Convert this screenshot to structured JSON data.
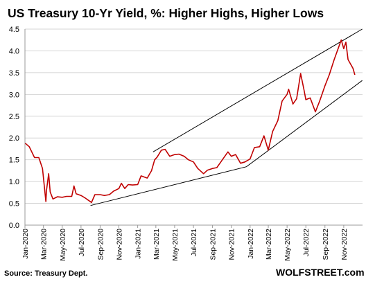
{
  "chart_data": {
    "type": "line",
    "title": "US Treasury 10-Yr Yield, %: Higher Highs, Higher Lows",
    "ylim": [
      0,
      4.5
    ],
    "yticks": [
      "0.0",
      "0.5",
      "1.0",
      "1.5",
      "2.0",
      "2.5",
      "3.0",
      "3.5",
      "4.0",
      "4.5"
    ],
    "ytick_values": [
      0,
      0.5,
      1,
      1.5,
      2,
      2.5,
      3,
      3.5,
      4,
      4.5
    ],
    "xlim": [
      "2020-01",
      "2022-12"
    ],
    "xticks": [
      "Jan-2020",
      "Mar-2020",
      "May-2020",
      "Jul-2020",
      "Sep-2020",
      "Nov-2020",
      "Jan-2021",
      "Mar-2021",
      "May-2021",
      "Jul-2021",
      "Sep-2021",
      "Nov-2021",
      "Jan-2022",
      "Mar-2022",
      "May-2022",
      "Jul-2022",
      "Sep-2022",
      "Nov-2022"
    ],
    "xtick_dates": [
      "2020-01-01",
      "2020-03-01",
      "2020-05-01",
      "2020-07-01",
      "2020-09-01",
      "2020-11-01",
      "2021-01-01",
      "2021-03-01",
      "2021-05-01",
      "2021-07-01",
      "2021-09-01",
      "2021-11-01",
      "2022-01-01",
      "2022-03-01",
      "2022-05-01",
      "2022-07-01",
      "2022-09-01",
      "2022-11-01"
    ],
    "grid": true,
    "series": [
      {
        "color": "#c00000",
        "points": [
          [
            "2020-01-02",
            1.88
          ],
          [
            "2020-01-15",
            1.8
          ],
          [
            "2020-02-01",
            1.55
          ],
          [
            "2020-02-15",
            1.55
          ],
          [
            "2020-02-27",
            1.3
          ],
          [
            "2020-03-09",
            0.54
          ],
          [
            "2020-03-11",
            0.8
          ],
          [
            "2020-03-18",
            1.18
          ],
          [
            "2020-03-23",
            0.76
          ],
          [
            "2020-04-01",
            0.6
          ],
          [
            "2020-04-15",
            0.65
          ],
          [
            "2020-05-01",
            0.64
          ],
          [
            "2020-05-15",
            0.66
          ],
          [
            "2020-06-01",
            0.66
          ],
          [
            "2020-06-08",
            0.9
          ],
          [
            "2020-06-15",
            0.72
          ],
          [
            "2020-07-01",
            0.68
          ],
          [
            "2020-07-15",
            0.62
          ],
          [
            "2020-08-04",
            0.52
          ],
          [
            "2020-08-15",
            0.7
          ],
          [
            "2020-09-01",
            0.7
          ],
          [
            "2020-09-15",
            0.68
          ],
          [
            "2020-10-01",
            0.7
          ],
          [
            "2020-10-15",
            0.78
          ],
          [
            "2020-11-01",
            0.84
          ],
          [
            "2020-11-09",
            0.96
          ],
          [
            "2020-11-20",
            0.84
          ],
          [
            "2020-12-01",
            0.93
          ],
          [
            "2020-12-15",
            0.92
          ],
          [
            "2021-01-01",
            0.93
          ],
          [
            "2021-01-12",
            1.13
          ],
          [
            "2021-02-01",
            1.08
          ],
          [
            "2021-02-15",
            1.25
          ],
          [
            "2021-02-25",
            1.5
          ],
          [
            "2021-03-05",
            1.56
          ],
          [
            "2021-03-19",
            1.72
          ],
          [
            "2021-03-31",
            1.74
          ],
          [
            "2021-04-15",
            1.58
          ],
          [
            "2021-05-01",
            1.62
          ],
          [
            "2021-05-15",
            1.63
          ],
          [
            "2021-06-01",
            1.58
          ],
          [
            "2021-06-15",
            1.5
          ],
          [
            "2021-07-01",
            1.45
          ],
          [
            "2021-07-15",
            1.3
          ],
          [
            "2021-08-03",
            1.18
          ],
          [
            "2021-08-15",
            1.26
          ],
          [
            "2021-09-01",
            1.3
          ],
          [
            "2021-09-15",
            1.32
          ],
          [
            "2021-10-01",
            1.48
          ],
          [
            "2021-10-21",
            1.68
          ],
          [
            "2021-11-01",
            1.58
          ],
          [
            "2021-11-15",
            1.62
          ],
          [
            "2021-12-01",
            1.42
          ],
          [
            "2021-12-15",
            1.45
          ],
          [
            "2022-01-01",
            1.52
          ],
          [
            "2022-01-15",
            1.78
          ],
          [
            "2022-02-01",
            1.8
          ],
          [
            "2022-02-15",
            2.05
          ],
          [
            "2022-03-01",
            1.72
          ],
          [
            "2022-03-15",
            2.15
          ],
          [
            "2022-04-01",
            2.4
          ],
          [
            "2022-04-15",
            2.85
          ],
          [
            "2022-05-01",
            3.0
          ],
          [
            "2022-05-06",
            3.12
          ],
          [
            "2022-05-20",
            2.78
          ],
          [
            "2022-06-01",
            2.9
          ],
          [
            "2022-06-14",
            3.48
          ],
          [
            "2022-06-25",
            3.1
          ],
          [
            "2022-07-01",
            2.88
          ],
          [
            "2022-07-15",
            2.92
          ],
          [
            "2022-08-01",
            2.6
          ],
          [
            "2022-08-15",
            2.85
          ],
          [
            "2022-09-01",
            3.2
          ],
          [
            "2022-09-15",
            3.45
          ],
          [
            "2022-10-01",
            3.8
          ],
          [
            "2022-10-24",
            4.25
          ],
          [
            "2022-11-01",
            4.05
          ],
          [
            "2022-11-08",
            4.2
          ],
          [
            "2022-11-15",
            3.8
          ],
          [
            "2022-12-01",
            3.6
          ],
          [
            "2022-12-07",
            3.45
          ]
        ]
      }
    ],
    "trendlines": [
      {
        "points": [
          [
            "2020-08-01",
            0.45
          ],
          [
            "2021-12-20",
            1.34
          ],
          [
            "2022-12-31",
            3.32
          ]
        ]
      },
      {
        "points": [
          [
            "2021-02-20",
            1.68
          ],
          [
            "2022-12-31",
            4.5
          ]
        ]
      }
    ],
    "source": "Source: Treasury Dept.",
    "brand": "WOLFSTREET.com"
  }
}
